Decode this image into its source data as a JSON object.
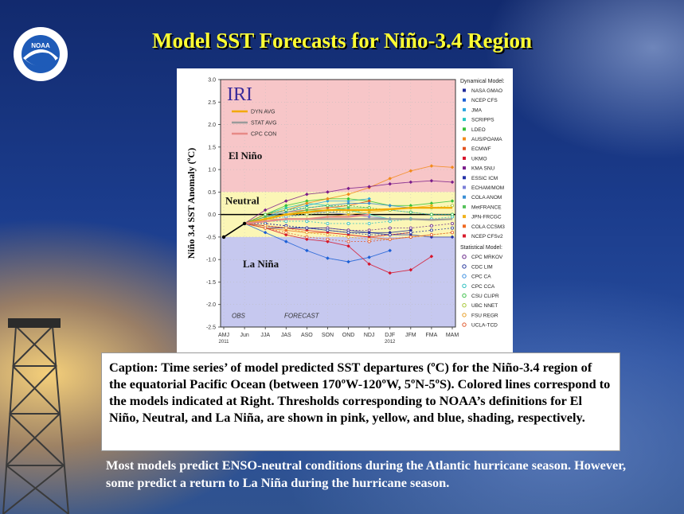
{
  "slide": {
    "title": "Model SST Forecasts for Niño-3.4 Region",
    "logo_text": "NOAA",
    "caption": "Caption: Time series’ of model predicted SST departures (ºC) for the Niño-3.4 region of the equatorial Pacific Ocean (between 170ºW-120ºW, 5ºN-5ºS).  Colored lines correspond to the models indicated at Right.  Thresholds corresponding to NOAA’s definitions for El Niño, Neutral, and La Niña, are shown in pink, yellow, and blue, shading, respectively.",
    "bottom_text": "Most models predict ENSO-neutral conditions during the Atlantic hurricane season.  However, some predict a return to La Niña during the hurricane season."
  },
  "chart_data": {
    "type": "line",
    "title": "IRI",
    "ylabel": "Niño 3.4 SST Anomaly (ºC)",
    "ylim": [
      -2.5,
      3.0
    ],
    "yticks": [
      "3.0",
      "2.5",
      "2.0",
      "1.5",
      "1.0",
      "0.5",
      "0.0",
      "-0.5",
      "-1.0",
      "-1.5",
      "-2.0",
      "-2.5"
    ],
    "categories": [
      "AMJ",
      "Jun",
      "JJA",
      "JAS",
      "ASO",
      "SON",
      "OND",
      "NDJ",
      "DJF",
      "JFM",
      "FMA",
      "MAM"
    ],
    "xsub": {
      "AMJ": "2011",
      "DJF": "2012"
    },
    "regions": [
      {
        "label": "El Niño",
        "from": 0.5,
        "to": 3.0,
        "color": "#f7c6c8"
      },
      {
        "label": "Neutral",
        "from": -0.5,
        "to": 0.5,
        "color": "#fbf6b6"
      },
      {
        "label": "La Niña",
        "from": -2.5,
        "to": -0.5,
        "color": "#c6c8ef"
      }
    ],
    "annotations": [
      "OBS",
      "FORECAST"
    ],
    "observed": [
      -0.5,
      -0.2
    ],
    "avg_lines": [
      {
        "name": "DYN AVG",
        "color": "#f2a900",
        "values": [
          null,
          -0.2,
          -0.1,
          0.0,
          0.05,
          0.1,
          0.1,
          0.1,
          0.12,
          0.15,
          0.15,
          0.15
        ]
      },
      {
        "name": "STAT AVG",
        "color": "#9a9a9a",
        "values": [
          null,
          -0.2,
          -0.15,
          -0.1,
          -0.1,
          -0.1,
          -0.1,
          -0.1,
          -0.1,
          -0.1,
          -0.12,
          -0.1
        ]
      },
      {
        "name": "CPC CON",
        "color": "#e78a86",
        "values": [
          null,
          -0.2,
          -0.15,
          -0.1,
          -0.1,
          -0.05,
          -0.05,
          0.0,
          null,
          null,
          null,
          null
        ]
      }
    ],
    "legend_dynamical_title": "Dynamical Model:",
    "legend_statistical_title": "Statistical Model:",
    "series": [
      {
        "name": "NASA GMAO",
        "group": "dyn",
        "color": "#1f2a9a",
        "values": [
          null,
          -0.2,
          -0.3,
          -0.3,
          -0.3,
          -0.35,
          -0.4,
          -0.4,
          -0.4,
          -0.35,
          null,
          null
        ]
      },
      {
        "name": "NCEP CFS",
        "group": "dyn",
        "color": "#1b5fd6",
        "values": [
          null,
          -0.2,
          -0.4,
          -0.6,
          -0.8,
          -0.97,
          -1.05,
          -0.95,
          -0.8,
          null,
          null,
          null
        ]
      },
      {
        "name": "JMA",
        "group": "dyn",
        "color": "#2aa6e0",
        "values": [
          null,
          -0.2,
          -0.05,
          0.1,
          0.2,
          0.3,
          0.3,
          0.35,
          null,
          null,
          null,
          null
        ]
      },
      {
        "name": "SCRIPPS",
        "group": "dyn",
        "color": "#27c7c2",
        "values": [
          null,
          -0.2,
          0.0,
          0.15,
          0.25,
          0.2,
          0.1,
          0.0,
          -0.1,
          null,
          null,
          null
        ]
      },
      {
        "name": "LDEO",
        "group": "dyn",
        "color": "#35c13a",
        "values": [
          null,
          -0.2,
          0.0,
          0.2,
          0.3,
          0.35,
          0.35,
          0.3,
          0.2,
          0.2,
          0.25,
          0.3
        ]
      },
      {
        "name": "AUS/POAMA",
        "group": "dyn",
        "color": "#f28a1a",
        "values": [
          null,
          -0.2,
          0.0,
          0.1,
          0.25,
          0.35,
          0.45,
          0.6,
          0.8,
          0.97,
          1.08,
          1.05
        ]
      },
      {
        "name": "ECMWF",
        "group": "dyn",
        "color": "#e2521e",
        "values": [
          null,
          -0.2,
          -0.05,
          0.05,
          0.1,
          0.15,
          0.2,
          0.3,
          null,
          null,
          null,
          null
        ]
      },
      {
        "name": "UKMO",
        "group": "dyn",
        "color": "#d6132a",
        "values": [
          null,
          -0.2,
          -0.3,
          -0.45,
          -0.55,
          -0.6,
          -0.7,
          -1.1,
          -1.3,
          -1.23,
          -0.93,
          null
        ]
      },
      {
        "name": "KMA SNU",
        "group": "dyn",
        "color": "#7a1c8a",
        "values": [
          null,
          -0.2,
          0.1,
          0.3,
          0.45,
          0.5,
          0.58,
          0.62,
          0.68,
          0.72,
          0.75,
          0.72
        ]
      },
      {
        "name": "ESSIC ICM",
        "group": "dyn",
        "color": "#2332a8",
        "values": [
          null,
          -0.2,
          -0.25,
          -0.3,
          -0.3,
          -0.3,
          -0.35,
          -0.4,
          -0.45,
          -0.45,
          -0.5,
          -0.5
        ]
      },
      {
        "name": "ECHAM/MOM",
        "group": "dyn",
        "color": "#7b7fd8",
        "values": [
          null,
          -0.2,
          -0.1,
          0.0,
          0.05,
          0.05,
          0.0,
          -0.05,
          -0.1,
          -0.1,
          -0.1,
          null
        ]
      },
      {
        "name": "COLA ANOM",
        "group": "dyn",
        "color": "#3a8fd4",
        "values": [
          null,
          -0.2,
          -0.05,
          0.05,
          0.15,
          0.2,
          0.25,
          0.25,
          0.2,
          0.15,
          null,
          null
        ]
      },
      {
        "name": "MetFRANCE",
        "group": "dyn",
        "color": "#55c15a",
        "values": [
          null,
          -0.2,
          -0.05,
          0.0,
          0.1,
          0.1,
          0.15,
          0.15,
          null,
          null,
          null,
          null
        ]
      },
      {
        "name": "JPN-FRCGC",
        "group": "dyn",
        "color": "#f0b21e",
        "values": [
          null,
          -0.2,
          -0.1,
          -0.1,
          -0.1,
          -0.05,
          0.0,
          0.05,
          0.1,
          0.15,
          0.2,
          null
        ]
      },
      {
        "name": "COLA CCSM3",
        "group": "dyn",
        "color": "#f06a22",
        "values": [
          null,
          -0.2,
          -0.3,
          -0.35,
          -0.4,
          -0.4,
          -0.45,
          -0.5,
          -0.55,
          -0.5,
          -0.45,
          null
        ]
      },
      {
        "name": "NCEP CFSv2",
        "group": "dyn",
        "color": "#d81c2e",
        "values": [
          null,
          -0.2,
          -0.25,
          -0.3,
          -0.35,
          -0.4,
          -0.45,
          -0.5,
          -0.45,
          -0.4,
          null,
          null
        ]
      },
      {
        "name": "CPC MRKOV",
        "group": "stat",
        "color": "#6a2a8a",
        "values": [
          null,
          -0.2,
          -0.2,
          -0.25,
          -0.3,
          -0.3,
          -0.35,
          -0.35,
          -0.3,
          -0.3,
          -0.25,
          -0.2
        ]
      },
      {
        "name": "CDC LIM",
        "group": "stat",
        "color": "#2a3a9e",
        "values": [
          null,
          -0.2,
          -0.2,
          -0.25,
          -0.3,
          -0.35,
          -0.4,
          -0.45,
          -0.45,
          -0.4,
          -0.35,
          -0.3
        ]
      },
      {
        "name": "CPC CA",
        "group": "stat",
        "color": "#3a8ee0",
        "values": [
          null,
          -0.2,
          -0.1,
          -0.05,
          0.0,
          0.05,
          0.1,
          0.1,
          0.1,
          0.05,
          0.0,
          0.0
        ]
      },
      {
        "name": "CPC CCA",
        "group": "stat",
        "color": "#32c0c0",
        "values": [
          null,
          -0.2,
          -0.15,
          -0.15,
          -0.15,
          -0.2,
          -0.2,
          -0.2,
          -0.15,
          -0.1,
          -0.1,
          -0.05
        ]
      },
      {
        "name": "CSU CLIPR",
        "group": "stat",
        "color": "#3ec04a",
        "values": [
          null,
          -0.2,
          0.0,
          0.1,
          0.15,
          0.2,
          0.2,
          0.15,
          0.1,
          0.05,
          0.0,
          0.0
        ]
      },
      {
        "name": "UBC NNET",
        "group": "stat",
        "color": "#a8c83a",
        "values": [
          null,
          -0.2,
          -0.1,
          0.0,
          0.0,
          0.05,
          0.05,
          0.1,
          0.1,
          0.15,
          0.15,
          0.2
        ]
      },
      {
        "name": "FSU REGR",
        "group": "stat",
        "color": "#e8a02a",
        "values": [
          null,
          -0.2,
          -0.25,
          -0.3,
          -0.4,
          -0.45,
          -0.5,
          -0.55,
          -0.55,
          -0.5,
          -0.45,
          -0.4
        ]
      },
      {
        "name": "UCLA-TCD",
        "group": "stat",
        "color": "#e05a2e",
        "values": [
          null,
          -0.2,
          -0.3,
          -0.4,
          -0.5,
          -0.55,
          -0.6,
          -0.6,
          -0.55,
          -0.5,
          -0.45,
          -0.4
        ]
      }
    ]
  }
}
